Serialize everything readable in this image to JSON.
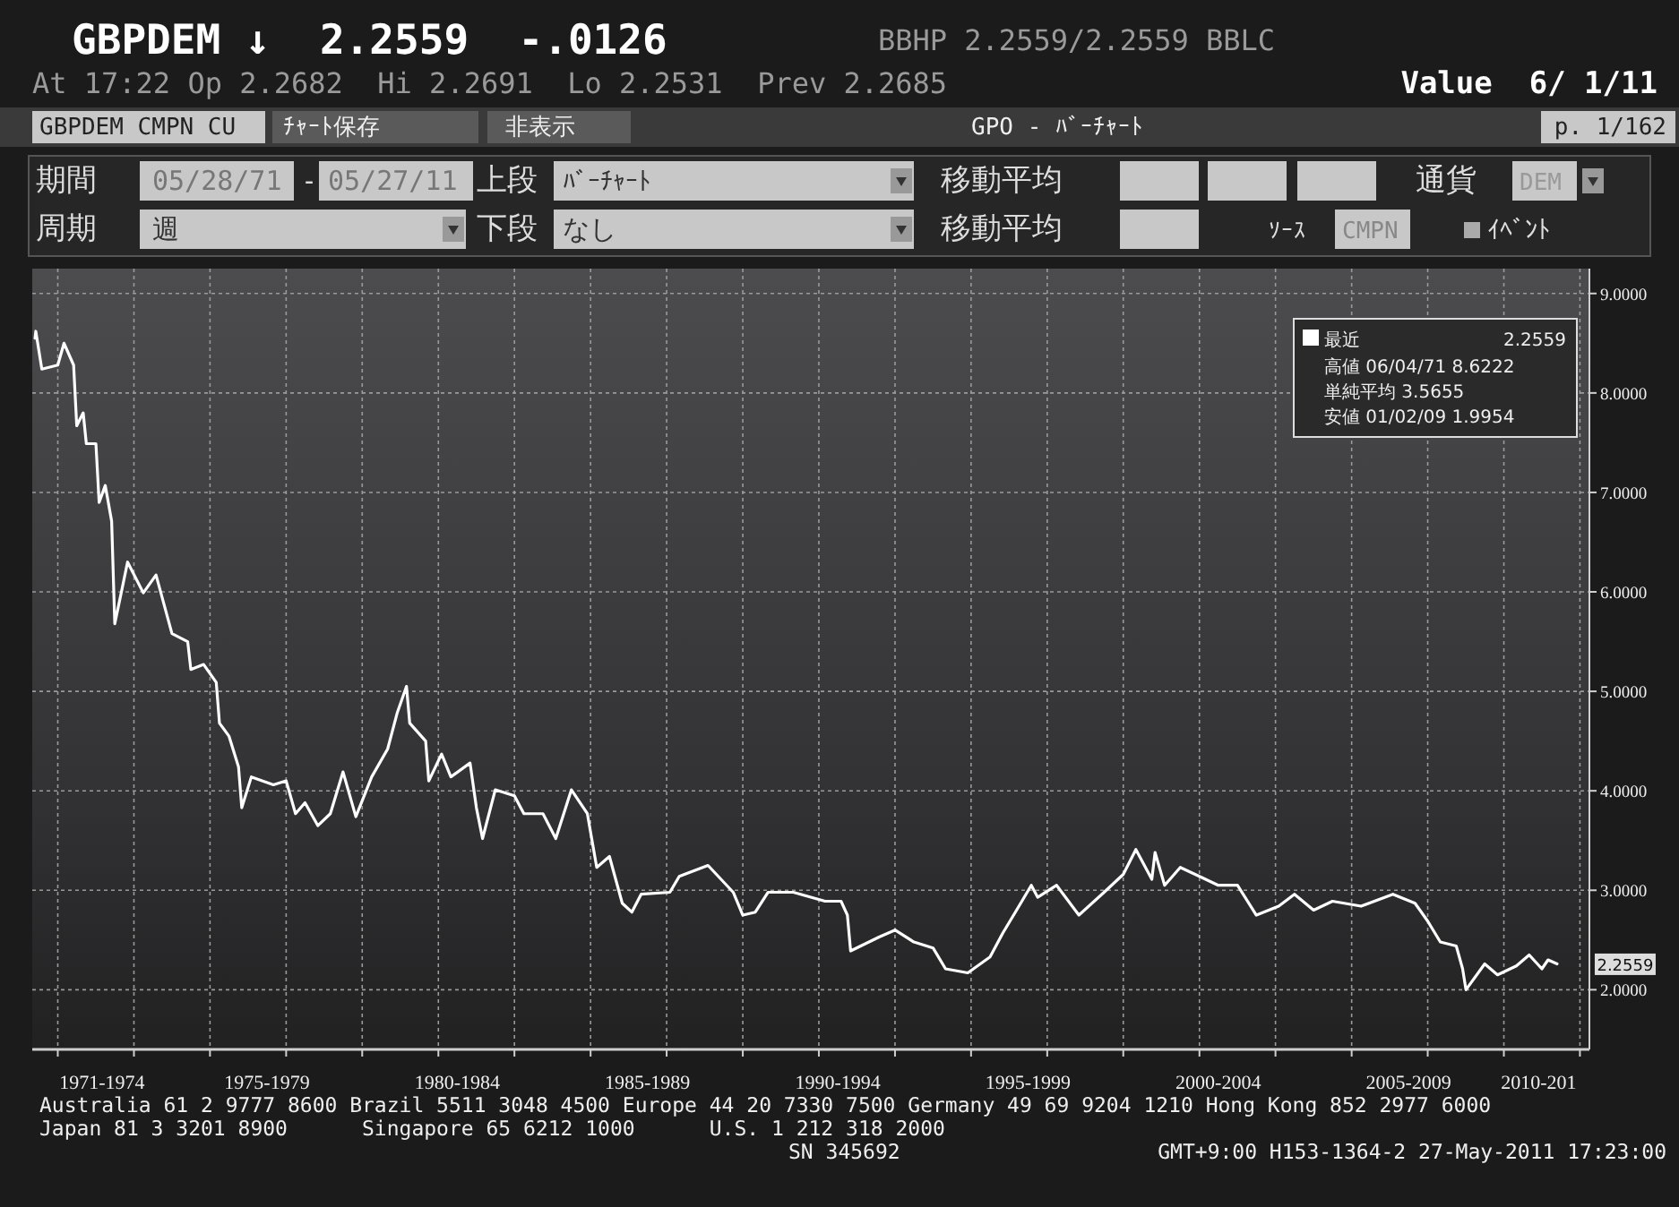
{
  "chart_data": {
    "type": "line",
    "title": "GBPDEM ↓  2.2559  -.0126",
    "subtitle": "At 17:22 Op 2.2682  Hi 2.2691  Lo 2.2531  Prev 2.2685",
    "annotations": [
      "BBHP 2.2559/2.2559 BBLC",
      "Value  6/ 1/11",
      "GBPDEM CMPN CU",
      "ﾁｬｰﾄ保存",
      "非表示",
      "GPO - ﾊﾞｰﾁｬｰﾄ",
      "p. 1/162",
      "期間",
      "05/28/71",
      "-",
      "05/27/11",
      "上段",
      "ﾊﾞｰﾁｬｰﾄ",
      "移動平均",
      "通貨",
      "DEM",
      "周期",
      "週",
      "下段",
      "なし",
      "移動平均",
      "ｿｰｽ",
      "CMPN",
      "ｲﾍﾞﾝﾄ",
      "2.2559",
      "高値 06/04/71 8.6222",
      "単純平均 3.5655",
      "安値 01/02/09 1.9954",
      {
        "text": "2.2559",
        "x": "2011-05-27",
        "y": 2.2559
      },
      "Australia 61 2 9777 8600 Brazil 5511 3048 4500 Europe 44 20 7330 7500 Germany 49 69 9204 1210 Hong Kong 852 2977 6000",
      "Japan 81 3 3201 8900      Singapore 65 6212 1000      U.S. 1 212 318 2000",
      "SN 345692",
      "GMT+9:00 H153-1364-2 27-May-2011 17:23:00"
    ],
    "x": [
      "1971-05-28",
      "1971-06-04",
      "1971-08",
      "1972-01",
      "1972-03",
      "1972-06",
      "1972-07",
      "1972-09",
      "1972-10",
      "1973-01",
      "1973-02",
      "1973-04",
      "1973-06",
      "1973-07",
      "1973-09",
      "1973-11",
      "1974-04",
      "1974-08",
      "1975-01",
      "1975-06",
      "1975-07",
      "1975-11",
      "1976-03",
      "1976-04",
      "1976-07",
      "1976-10",
      "1976-11",
      "1977-02",
      "1977-09",
      "1978-01",
      "1978-04",
      "1978-07",
      "1978-11",
      "1979-03",
      "1979-07",
      "1979-11",
      "1980-04",
      "1980-09",
      "1980-12",
      "1981-03",
      "1981-04",
      "1981-09",
      "1981-10",
      "1982-02",
      "1982-05",
      "1982-11",
      "1983-01",
      "1983-03",
      "1983-07",
      "1984-01",
      "1984-04",
      "1984-10",
      "1985-02",
      "1985-07",
      "1985-12",
      "1986-03",
      "1986-07",
      "1986-11",
      "1987-02",
      "1987-05",
      "1988-02",
      "1988-05",
      "1989-02",
      "1989-10",
      "1990-01",
      "1990-05",
      "1990-09",
      "1991-05",
      "1992-03",
      "1992-08",
      "1992-10",
      "1992-11",
      "1993-08",
      "1994-01",
      "1994-07",
      "1995-01",
      "1995-05",
      "1995-12",
      "1996-07",
      "1996-11",
      "1997-03",
      "1997-08",
      "1997-10",
      "1998-04",
      "1998-11",
      "1999-07",
      "2000-01",
      "2000-05",
      "2000-10",
      "2000-11",
      "2001-02",
      "2001-07",
      "2002-01",
      "2002-07",
      "2003-01",
      "2003-07",
      "2004-02",
      "2004-07",
      "2005-01",
      "2005-07",
      "2006-04",
      "2007-02",
      "2007-09",
      "2008-01",
      "2008-05",
      "2008-10",
      "2008-12",
      "2009-01-02",
      "2009-07",
      "2009-11",
      "2010-05",
      "2010-09",
      "2011-01",
      "2011-03",
      "2011-05-27"
    ],
    "series": [
      {
        "name": "最近",
        "color": "#ffffff",
        "values": [
          8.55,
          8.62,
          8.24,
          8.28,
          8.5,
          8.28,
          7.67,
          7.8,
          7.49,
          7.49,
          6.9,
          7.07,
          6.71,
          5.68,
          5.99,
          6.3,
          5.99,
          6.17,
          5.58,
          5.5,
          5.22,
          5.27,
          5.09,
          4.68,
          4.55,
          4.24,
          3.83,
          4.14,
          4.06,
          4.1,
          3.77,
          3.88,
          3.65,
          3.77,
          4.19,
          3.74,
          4.14,
          4.42,
          4.78,
          5.05,
          4.68,
          4.5,
          4.1,
          4.37,
          4.14,
          4.28,
          3.83,
          3.52,
          4.01,
          3.95,
          3.77,
          3.77,
          3.52,
          4.01,
          3.77,
          3.23,
          3.34,
          2.87,
          2.78,
          2.96,
          2.98,
          3.14,
          3.25,
          2.98,
          2.75,
          2.78,
          2.98,
          2.98,
          2.89,
          2.89,
          2.75,
          2.39,
          2.53,
          2.6,
          2.48,
          2.42,
          2.21,
          2.17,
          2.33,
          2.57,
          2.78,
          3.05,
          2.93,
          3.05,
          2.75,
          2.98,
          3.16,
          3.41,
          3.11,
          3.38,
          3.05,
          3.23,
          3.14,
          3.05,
          3.05,
          2.75,
          2.84,
          2.96,
          2.8,
          2.89,
          2.84,
          2.96,
          2.87,
          2.69,
          2.48,
          2.44,
          2.21,
          2.0,
          2.26,
          2.15,
          2.24,
          2.35,
          2.21,
          2.3,
          2.26
        ]
      }
    ],
    "xlim": [
      "1971-05",
      "2012-04"
    ],
    "xticks": [
      {
        "value": "1972",
        "label": null
      },
      {
        "value": "1974",
        "label": null
      },
      {
        "value": "1976",
        "label": null
      },
      {
        "value": "1978",
        "label": null
      },
      {
        "value": "1980",
        "label": null
      },
      {
        "value": "1982",
        "label": null
      },
      {
        "value": "1984",
        "label": null
      },
      {
        "value": "1986",
        "label": null
      },
      {
        "value": "1988",
        "label": null
      },
      {
        "value": "1990",
        "label": null
      },
      {
        "value": "1992",
        "label": null
      },
      {
        "value": "1994",
        "label": null
      },
      {
        "value": "1996",
        "label": null
      },
      {
        "value": "1998",
        "label": null
      },
      {
        "value": "2000",
        "label": null
      },
      {
        "value": "2002",
        "label": null
      },
      {
        "value": "2004",
        "label": null
      },
      {
        "value": "2006",
        "label": null
      },
      {
        "value": "2008",
        "label": null
      },
      {
        "value": "2010",
        "label": null
      },
      {
        "value": "2012",
        "label": null
      },
      {
        "value": "1973-03",
        "label": "1971-1974"
      },
      {
        "value": "1977-07",
        "label": "1975-1979"
      },
      {
        "value": "1982-07",
        "label": "1980-1984"
      },
      {
        "value": "1987-07",
        "label": "1985-1989"
      },
      {
        "value": "1992-07",
        "label": "1990-1994"
      },
      {
        "value": "1997-07",
        "label": "1995-1999"
      },
      {
        "value": "2002-07",
        "label": "2000-2004"
      },
      {
        "value": "2007-07",
        "label": "2005-2009"
      },
      {
        "value": "2010-12",
        "label": "2010-201"
      }
    ],
    "ylim": [
      1.4,
      9.25
    ],
    "yticks": [
      {
        "value": 2,
        "label": "2.0000"
      },
      {
        "value": 3,
        "label": "3.0000"
      },
      {
        "value": 4,
        "label": "4.0000"
      },
      {
        "value": 5,
        "label": "5.0000"
      },
      {
        "value": 6,
        "label": "6.0000"
      },
      {
        "value": 7,
        "label": "7.0000"
      },
      {
        "value": 8,
        "label": "8.0000"
      },
      {
        "value": 9,
        "label": "9.0000"
      }
    ],
    "grid": true,
    "legend": "top right",
    "line_style": "solid",
    "marker": "none"
  }
}
